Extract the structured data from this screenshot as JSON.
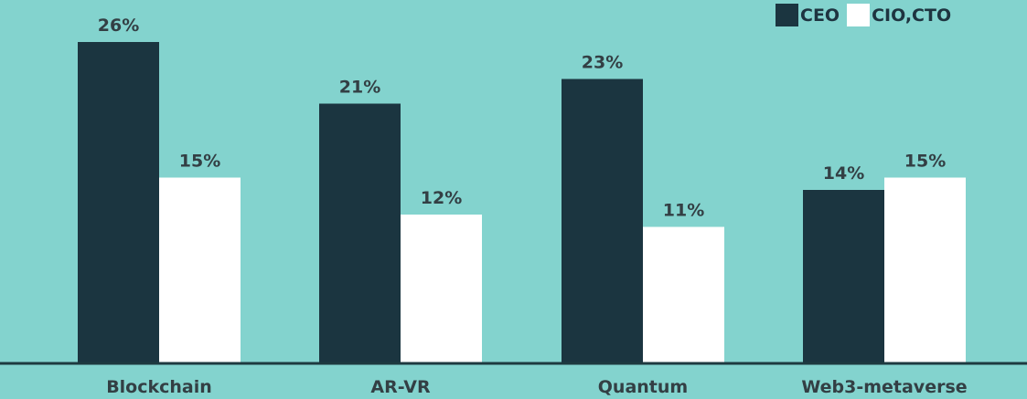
{
  "colors": {
    "background": "#83d3ce",
    "ceo": "#1b3540",
    "cio_cto": "#ffffff",
    "text": "#333f44",
    "axis": "#1e3a40"
  },
  "legend": {
    "ceo_label": "CEO",
    "cio_cto_label": "CIO,CTO"
  },
  "chart_data": {
    "type": "bar",
    "categories": [
      "Blockchain",
      "AR-VR",
      "Quantum",
      "Web3-metaverse"
    ],
    "series": [
      {
        "name": "CEO",
        "values": [
          26,
          21,
          23,
          14
        ],
        "labels": [
          "26%",
          "21%",
          "23%",
          "14%"
        ]
      },
      {
        "name": "CIO,CTO",
        "values": [
          15,
          12,
          11,
          15
        ],
        "labels": [
          "15%",
          "12%",
          "11%",
          "15%"
        ]
      }
    ],
    "value_unit": "%",
    "title": "",
    "xlabel": "",
    "ylabel": "",
    "ylim": [
      0,
      28
    ],
    "grid": false,
    "legend_position": "top-right"
  }
}
